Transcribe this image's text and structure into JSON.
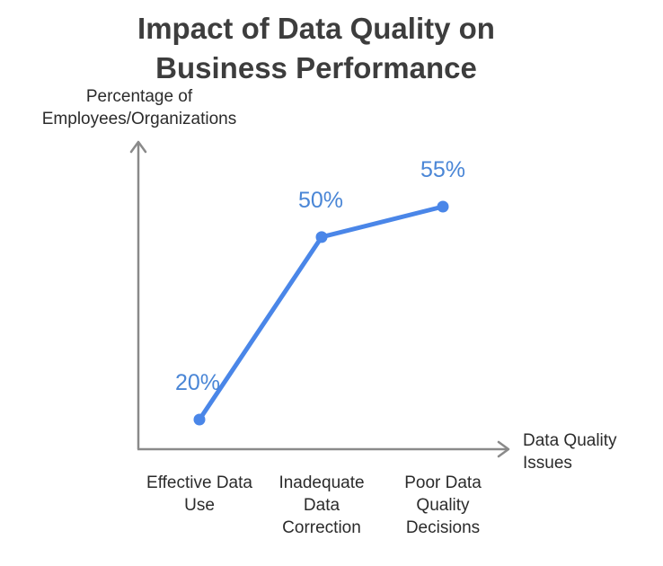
{
  "chart_data": {
    "type": "line",
    "title": [
      "Impact of Data Quality on",
      "Business Performance"
    ],
    "ylabel": [
      "Percentage of",
      "Employees/Organizations"
    ],
    "xlabel": [
      "Data Quality",
      "Issues"
    ],
    "categories": [
      [
        "Effective Data",
        "Use"
      ],
      [
        "Inadequate",
        "Data",
        "Correction"
      ],
      [
        "Poor Data",
        "Quality",
        "Decisions"
      ]
    ],
    "values": [
      20,
      50,
      55
    ],
    "data_labels": [
      "20%",
      "50%",
      "55%"
    ],
    "ylim": [
      10,
      60
    ],
    "grid": false,
    "legend": "none",
    "colors": {
      "line": "#4a86e8",
      "axis": "#8a8a8a",
      "label": "#4a86d6"
    }
  }
}
